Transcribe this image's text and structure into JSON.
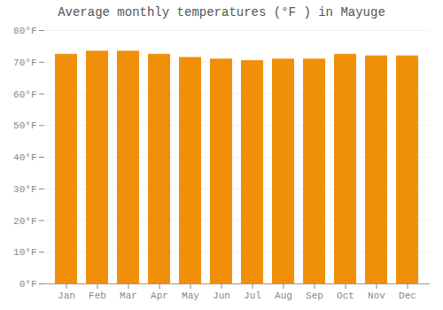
{
  "chart_data": {
    "type": "bar",
    "title": "Average monthly temperatures (°F ) in Mayuge",
    "categories": [
      "Jan",
      "Feb",
      "Mar",
      "Apr",
      "May",
      "Jun",
      "Jul",
      "Aug",
      "Sep",
      "Oct",
      "Nov",
      "Dec"
    ],
    "values": [
      72.5,
      73.5,
      73.5,
      72.5,
      71.5,
      71.0,
      70.5,
      71.0,
      71.0,
      72.5,
      72.0,
      72.0
    ],
    "color": "#F0900A",
    "ylim": [
      0,
      80
    ],
    "yticks": [
      {
        "value": 0,
        "label": "0°F"
      },
      {
        "value": 10,
        "label": "10°F"
      },
      {
        "value": 20,
        "label": "20°F"
      },
      {
        "value": 30,
        "label": "30°F"
      },
      {
        "value": 40,
        "label": "40°F"
      },
      {
        "value": 50,
        "label": "50°F"
      },
      {
        "value": 60,
        "label": "60°F"
      },
      {
        "value": 70,
        "label": "70°F"
      },
      {
        "value": 80,
        "label": "80°F"
      }
    ],
    "grid": true
  }
}
